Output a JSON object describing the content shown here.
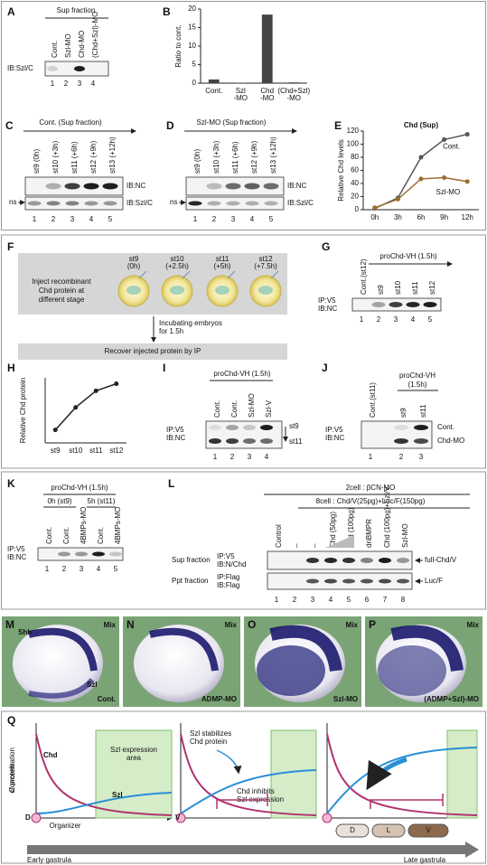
{
  "A": {
    "label": "A",
    "header": "Sup fraction",
    "lanes": [
      "Cont.",
      "Szl-MO",
      "Chd-MO",
      "(Chd+Szl)-MO"
    ],
    "row": "IB:Szl/C",
    "numbers": [
      "1",
      "2",
      "3",
      "4"
    ]
  },
  "B": {
    "label": "B",
    "chart_data": {
      "type": "bar",
      "y_label": "Ratio to cont.",
      "categories": [
        [
          "Cont."
        ],
        [
          "Szl",
          "-MO"
        ],
        [
          "Chd",
          "-MO"
        ],
        [
          "(Chd+Szl)",
          "-MO"
        ]
      ],
      "values": [
        1,
        0.1,
        18.5,
        0.2
      ],
      "color": "#444444",
      "ylim": [
        0,
        20
      ],
      "yticks": [
        0,
        5,
        10,
        15,
        20
      ]
    }
  },
  "C": {
    "label": "C",
    "header": "Cont. (Sup fraction)",
    "lanes": [
      "st9 (0h)",
      "st10 (+3h)",
      "st11 (+6h)",
      "st12 (+9h)",
      "st13 (+12h)"
    ],
    "rows": [
      "IB:NC",
      "IB:Szl/C"
    ],
    "ns": "ns",
    "numbers": [
      "1",
      "2",
      "3",
      "4",
      "5"
    ]
  },
  "D": {
    "label": "D",
    "header": "Szl-MO (Sup fraction)",
    "lanes": [
      "st9 (0h)",
      "st10 (+3h)",
      "st11 (+6h)",
      "st12 (+9h)",
      "st13 (+12h)"
    ],
    "rows": [
      "IB:NC",
      "IB:Szl/C"
    ],
    "ns": "ns",
    "numbers": [
      "1",
      "2",
      "3",
      "4",
      "5"
    ]
  },
  "E": {
    "label": "E",
    "chart_data": {
      "type": "line",
      "title": "Chd (Sup)",
      "y_label": "Relative Chd levels",
      "categories": [
        "0h",
        "3h",
        "6h",
        "9h",
        "12h"
      ],
      "series": [
        {
          "name": "Cont.",
          "color": "#555555",
          "values": [
            2,
            18,
            80,
            107,
            115
          ]
        },
        {
          "name": "Szl-MO",
          "color": "#9c6b2e",
          "values": [
            3,
            16,
            47,
            49,
            43
          ]
        }
      ],
      "ylim": [
        0,
        120
      ],
      "yticks": [
        0,
        20,
        40,
        60,
        80,
        100,
        120
      ]
    }
  },
  "F": {
    "label": "F",
    "stages": [
      [
        "st9",
        "(0h)"
      ],
      [
        "st10",
        "(+2.5h)"
      ],
      [
        "st11",
        "(+5h)"
      ],
      [
        "st12",
        "(+7.5h)"
      ]
    ],
    "inject": [
      "Inject recombinant",
      "Chd protein at",
      "different stage"
    ],
    "incubate": [
      "Incubating embryos",
      "for 1.5h"
    ],
    "recover": "Recover injected protein by IP"
  },
  "G": {
    "label": "G",
    "header": "proChd-VH (1.5h)",
    "lanes": [
      "Cont.(st12)",
      "st9",
      "st10",
      "st11",
      "st12"
    ],
    "rows": [
      "IP:V5",
      "IB:NC"
    ],
    "numbers": [
      "1",
      "2",
      "3",
      "4",
      "5"
    ]
  },
  "H": {
    "label": "H",
    "chart_data": {
      "type": "line",
      "y_label": "Relative Chd protein",
      "categories": [
        "st9",
        "st10",
        "st11",
        "st12"
      ],
      "values": [
        0.22,
        0.6,
        0.88,
        1.0
      ],
      "color": "#222222",
      "ylim": [
        0,
        1.1
      ]
    }
  },
  "I": {
    "label": "I",
    "header": "proChd-VH (1.5h)",
    "lanes": [
      "Cont.",
      "Cont.",
      "Szl-MO",
      "Szl-V"
    ],
    "rows": [
      "IP:V5",
      "IB:NC"
    ],
    "stages": [
      "st9",
      "st11"
    ],
    "numbers": [
      "1",
      "2",
      "3",
      "4"
    ]
  },
  "J": {
    "label": "J",
    "control": "Cont.(st11)",
    "header": [
      "proChd-VH",
      "(1.5h)"
    ],
    "lanes": [
      "st9",
      "st11"
    ],
    "rows": [
      "IP:V5",
      "IB:NC"
    ],
    "conditions": [
      "Cont.",
      "Chd-MO"
    ],
    "numbers": [
      "1",
      "2",
      "3"
    ]
  },
  "K": {
    "label": "K",
    "header": "proChd-VH (1.5h)",
    "groups": [
      "0h (st9)",
      "5h (st11)"
    ],
    "lanes": [
      "Cont.",
      "Cont.",
      "4BMPs-MO",
      "Cont.",
      "4BMPs-MO"
    ],
    "rows": [
      "IP:V5",
      "IB:NC"
    ],
    "numbers": [
      "1",
      "2",
      "3",
      "4",
      "5"
    ]
  },
  "L": {
    "label": "L",
    "header1": "2cell : βCN-MO",
    "header2": "8cell : Chd/V(25pg)+Luc/F(150pg)",
    "lanes": [
      "Control",
      "–",
      "–",
      "Chd (50pg)",
      "Chd (100pg)",
      "dnBMPR",
      "Chd (100pg)+Szl/V",
      "Szl-MO"
    ],
    "fractions": [
      "Sup fraction",
      "Ppt fraction"
    ],
    "rows": [
      [
        "IP:V5",
        "IB:N/Chd"
      ],
      [
        "IP:Flag",
        "IB:Flag"
      ]
    ],
    "bands": [
      "full-Chd/V",
      "Luc/F"
    ],
    "numbers": [
      "1",
      "2",
      "3",
      "4",
      "5",
      "6",
      "7",
      "8"
    ]
  },
  "M": {
    "label": "M",
    "probe": "Shh",
    "mix": "Mix",
    "szl": "Szl",
    "condition": "Cont."
  },
  "N": {
    "label": "N",
    "mix": "Mix",
    "condition": "ADMP-MO"
  },
  "O": {
    "label": "O",
    "mix": "Mix",
    "condition": "Szl-MO"
  },
  "P": {
    "label": "P",
    "mix": "Mix",
    "condition": "(ADMP+Szl)-MO"
  },
  "Q": {
    "label": "Q",
    "y_label": [
      "Concentration",
      "of protein"
    ],
    "area": [
      "Szl expression",
      "area"
    ],
    "chd": "Chd",
    "szl": "Szl",
    "d": "D",
    "v": "V",
    "organizer": "Organizer",
    "stabilizes": [
      "Szl stabilizes",
      "Chd protein"
    ],
    "inhibits": [
      "Chd inhibits",
      "Szl expression"
    ],
    "regions": [
      "D",
      "L",
      "V"
    ],
    "early": "Early gastrula",
    "late": "Late gastrula"
  }
}
